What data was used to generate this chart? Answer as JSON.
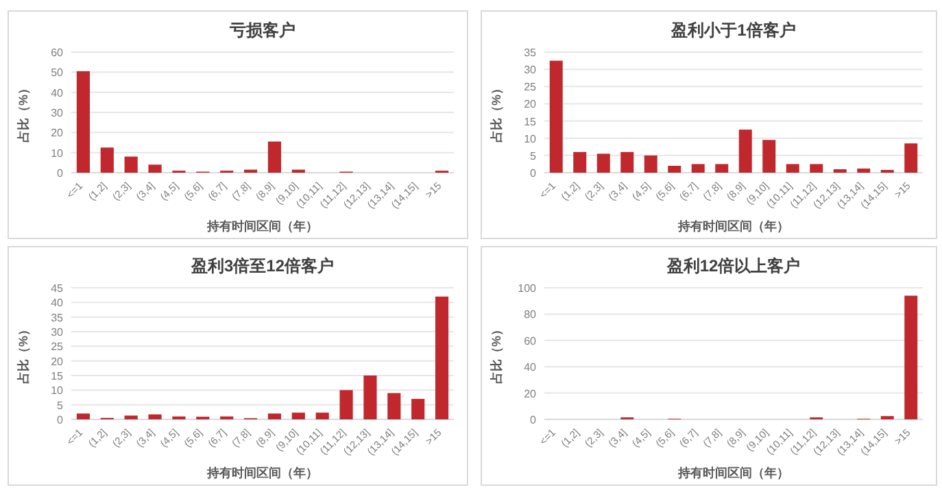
{
  "chart_data": [
    {
      "type": "bar",
      "title": "亏损客户",
      "xlabel": "持有时间区间（年）",
      "ylabel": "占比（%）",
      "categories": [
        "<=1",
        "(1,2]",
        "(2,3]",
        "(3,4]",
        "(4,5]",
        "(5,6]",
        "(6,7]",
        "(7,8]",
        "(8,9]",
        "(9,10]",
        "(10,11]",
        "(11,12]",
        "(12,13]",
        "(13,14]",
        "(14,15]",
        ">15"
      ],
      "values": [
        50.5,
        12.5,
        8,
        4,
        1,
        0.5,
        1,
        1.5,
        15.5,
        1.5,
        0,
        0.5,
        0,
        0,
        0,
        1
      ],
      "color": "#c0282d",
      "ylim": [
        0,
        60
      ],
      "yticks": [
        0,
        10,
        20,
        30,
        40,
        50,
        60
      ],
      "grid": "y"
    },
    {
      "type": "bar",
      "title": "盈利小于1倍客户",
      "xlabel": "持有时间区间（年）",
      "ylabel": "占比（%）",
      "categories": [
        "<=1",
        "(1,2]",
        "(2,3]",
        "(3,4]",
        "(4,5]",
        "(5,6]",
        "(6,7]",
        "(7,8]",
        "(8,9]",
        "(9,10]",
        "(10,11]",
        "(11,12]",
        "(12,13]",
        "(13,14]",
        "(14,15]",
        ">15"
      ],
      "values": [
        32.5,
        6,
        5.5,
        6,
        5,
        2,
        2.5,
        2.5,
        12.5,
        9.5,
        2.5,
        2.5,
        1,
        1.2,
        0.8,
        8.5
      ],
      "color": "#c0282d",
      "ylim": [
        0,
        35
      ],
      "yticks": [
        0,
        5,
        10,
        15,
        20,
        25,
        30,
        35
      ],
      "grid": "y"
    },
    {
      "type": "bar",
      "title": "盈利3倍至12倍客户",
      "xlabel": "持有时间区间（年）",
      "ylabel": "占比（%）",
      "categories": [
        "<=1",
        "(1,2]",
        "(2,3]",
        "(3,4]",
        "(4,5]",
        "(5,6]",
        "(6,7]",
        "(7,8]",
        "(8,9]",
        "(9,10]",
        "(10,11]",
        "(11,12]",
        "(12,13]",
        "(13,14]",
        "(14,15]",
        ">15"
      ],
      "values": [
        2,
        0.5,
        1.3,
        1.7,
        1,
        0.9,
        1,
        0.4,
        2,
        2.3,
        2.3,
        10,
        15,
        9,
        7,
        42
      ],
      "color": "#c0282d",
      "ylim": [
        0,
        45
      ],
      "yticks": [
        0,
        5,
        10,
        15,
        20,
        25,
        30,
        35,
        40,
        45
      ],
      "grid": "y"
    },
    {
      "type": "bar",
      "title": "盈利12倍以上客户",
      "xlabel": "持有时间区间（年）",
      "ylabel": "占比（%）",
      "categories": [
        "<=1",
        "(1,2]",
        "(2,3]",
        "(3,4]",
        "(4,5]",
        "(5,6]",
        "(6,7]",
        "(7,8]",
        "(8,9]",
        "(9,10]",
        "(10,11]",
        "(11,12]",
        "(12,13]",
        "(13,14]",
        "(14,15]",
        ">15"
      ],
      "values": [
        0,
        0,
        0,
        1.5,
        0,
        0.5,
        0,
        0,
        0,
        0,
        0,
        1.5,
        0,
        0.5,
        2.5,
        94
      ],
      "color": "#c0282d",
      "ylim": [
        0,
        100
      ],
      "yticks": [
        0,
        20,
        40,
        60,
        80,
        100
      ],
      "grid": "y"
    }
  ]
}
